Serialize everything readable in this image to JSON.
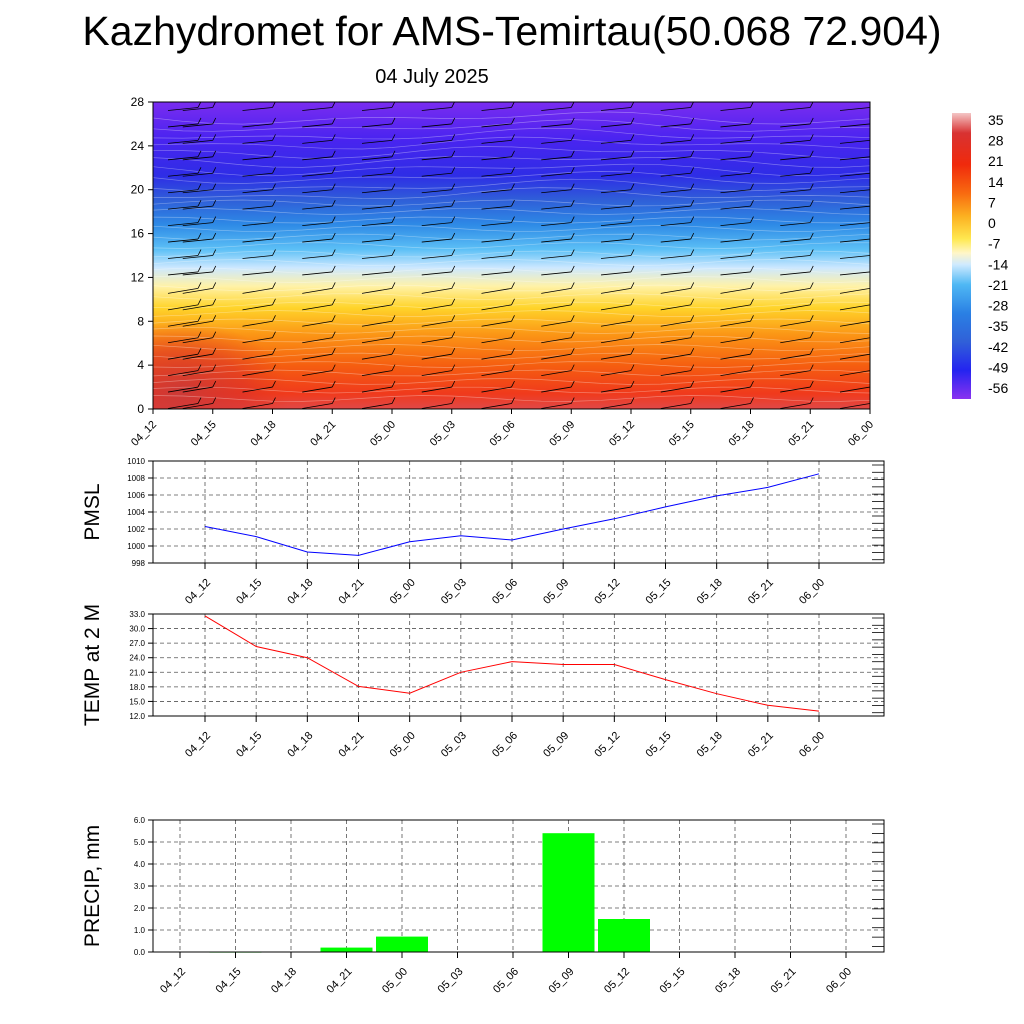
{
  "title": "Kazhydromet for AMS-Temirtau(50.068 72.904)",
  "subtitle": "04 July 2025",
  "time_labels": [
    "04_12",
    "04_15",
    "04_18",
    "04_21",
    "05_00",
    "05_03",
    "05_06",
    "05_09",
    "05_12",
    "05_15",
    "05_18",
    "05_21",
    "06_00"
  ],
  "colors": {
    "pmsl_line": "#0000ff",
    "temp_line": "#ff0000",
    "precip_bar": "#00ff00"
  },
  "chart_data": [
    {
      "type": "heatmap",
      "name": "upper-air-cross-section",
      "y_ticks": [
        "0",
        "4",
        "8",
        "12",
        "16",
        "20",
        "24",
        "28"
      ],
      "ylim": [
        0,
        28
      ],
      "x": [
        "04_12",
        "04_15",
        "04_18",
        "04_21",
        "05_00",
        "05_03",
        "05_06",
        "05_09",
        "05_12",
        "05_15",
        "05_18",
        "05_21",
        "06_00"
      ],
      "colorbar_labels": [
        "35",
        "28",
        "21",
        "14",
        "7",
        "0",
        "-7",
        "-14",
        "-21",
        "-28",
        "-35",
        "-42",
        "-49",
        "-56"
      ],
      "colorbar_range": [
        -63,
        35
      ],
      "wind_barbs": true
    },
    {
      "type": "line",
      "name": "pmsl",
      "ylabel": "PMSL",
      "x": [
        "04_12",
        "04_15",
        "04_18",
        "04_21",
        "05_00",
        "05_03",
        "05_06",
        "05_09",
        "05_12",
        "05_15",
        "05_18",
        "05_21",
        "06_00"
      ],
      "values": [
        1002.3,
        1001.1,
        999.3,
        998.9,
        1000.5,
        1001.2,
        1000.7,
        1002.0,
        1003.2,
        1004.6,
        1005.9,
        1006.9,
        1008.5
      ],
      "y_ticks": [
        "998",
        "1000",
        "1002",
        "1004",
        "1006",
        "1008",
        "1010"
      ],
      "ylim": [
        998,
        1010
      ],
      "grid": true
    },
    {
      "type": "line",
      "name": "temp-2m",
      "ylabel": "TEMP at 2 M",
      "x": [
        "04_12",
        "04_15",
        "04_18",
        "04_21",
        "05_00",
        "05_03",
        "05_06",
        "05_09",
        "05_12",
        "05_15",
        "05_18",
        "05_21",
        "06_00"
      ],
      "values": [
        32.6,
        26.3,
        24.0,
        18.1,
        16.7,
        21.0,
        23.2,
        22.6,
        22.6,
        19.5,
        16.6,
        14.2,
        13.0
      ],
      "y_ticks": [
        "12.0",
        "15.0",
        "18.0",
        "21.0",
        "24.0",
        "27.0",
        "30.0",
        "33.0"
      ],
      "ylim": [
        12,
        33
      ],
      "grid": true
    },
    {
      "type": "bar",
      "name": "precip",
      "ylabel": "PRECIP, mm",
      "categories": [
        "04_12",
        "04_15",
        "04_18",
        "04_21",
        "05_00",
        "05_03",
        "05_06",
        "05_09",
        "05_12",
        "05_15",
        "05_18",
        "05_21",
        "06_00"
      ],
      "values": [
        0.0,
        0.02,
        0.0,
        0.2,
        0.7,
        0.0,
        0.0,
        5.4,
        1.5,
        0.0,
        0.0,
        0.0,
        0.0
      ],
      "y_ticks": [
        "0.0",
        "1.0",
        "2.0",
        "3.0",
        "4.0",
        "5.0",
        "6.0"
      ],
      "ylim": [
        0,
        6
      ],
      "grid": true
    }
  ]
}
